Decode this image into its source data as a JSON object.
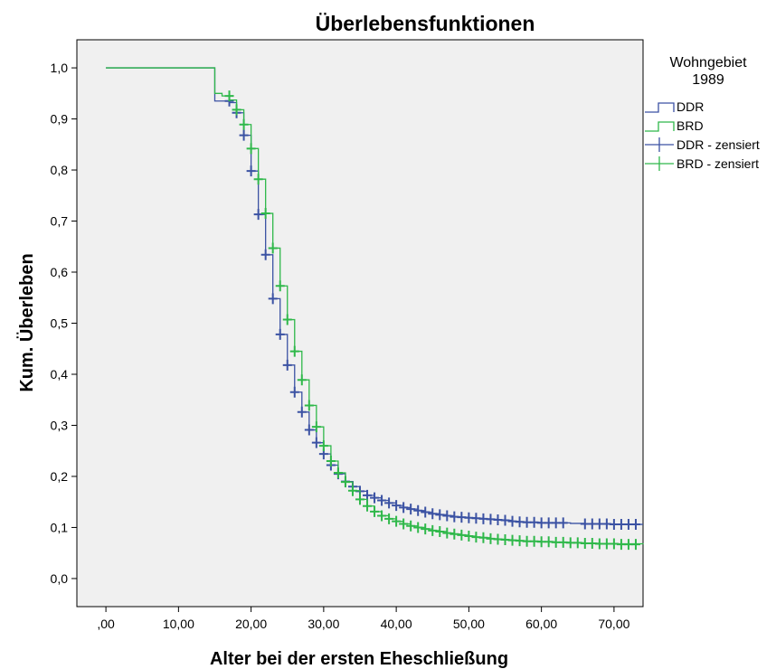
{
  "chart_data": {
    "type": "line",
    "title": "Überlebensfunktionen",
    "xlabel": "Alter bei der ersten Eheschließung",
    "ylabel": "Kum. Überleben",
    "xlim": [
      -4,
      74
    ],
    "ylim": [
      -0.055,
      1.055
    ],
    "x_ticks": [
      0,
      10,
      20,
      30,
      40,
      50,
      60,
      70
    ],
    "x_tick_labels": [
      ",00",
      "10,00",
      "20,00",
      "30,00",
      "40,00",
      "50,00",
      "60,00",
      "70,00"
    ],
    "y_ticks": [
      0,
      0.1,
      0.2,
      0.3,
      0.4,
      0.5,
      0.6,
      0.7,
      0.8,
      0.9,
      1.0
    ],
    "y_tick_labels": [
      "0,0",
      "0,1",
      "0,2",
      "0,3",
      "0,4",
      "0,5",
      "0,6",
      "0,7",
      "0,8",
      "0,9",
      "1,0"
    ],
    "grid": false,
    "plot_background": "#f0f0f0",
    "legend": {
      "title_lines": [
        "Wohngebiet",
        "1989"
      ],
      "position": "right",
      "entries": [
        {
          "label": "DDR",
          "kind": "step",
          "series": "DDR"
        },
        {
          "label": "BRD",
          "kind": "step",
          "series": "BRD"
        },
        {
          "label": "DDR - zensiert",
          "kind": "cross",
          "series": "DDR"
        },
        {
          "label": "BRD - zensiert",
          "kind": "cross",
          "series": "BRD"
        }
      ]
    },
    "series": [
      {
        "name": "DDR",
        "color": "#3b52a3",
        "steps": [
          [
            0,
            1.0
          ],
          [
            15,
            0.935
          ],
          [
            17,
            0.932
          ],
          [
            18,
            0.912
          ],
          [
            19,
            0.868
          ],
          [
            20,
            0.798
          ],
          [
            21,
            0.713
          ],
          [
            22,
            0.634
          ],
          [
            23,
            0.548
          ],
          [
            24,
            0.478
          ],
          [
            25,
            0.418
          ],
          [
            26,
            0.365
          ],
          [
            27,
            0.326
          ],
          [
            28,
            0.291
          ],
          [
            29,
            0.266
          ],
          [
            30,
            0.244
          ],
          [
            31,
            0.222
          ],
          [
            32,
            0.205
          ],
          [
            33,
            0.19
          ],
          [
            34,
            0.18
          ],
          [
            35,
            0.171
          ],
          [
            36,
            0.163
          ],
          [
            37,
            0.158
          ],
          [
            38,
            0.153
          ],
          [
            39,
            0.148
          ],
          [
            40,
            0.143
          ],
          [
            41,
            0.139
          ],
          [
            42,
            0.136
          ],
          [
            43,
            0.133
          ],
          [
            44,
            0.13
          ],
          [
            45,
            0.127
          ],
          [
            46,
            0.125
          ],
          [
            47,
            0.123
          ],
          [
            48,
            0.121
          ],
          [
            49,
            0.12
          ],
          [
            50,
            0.119
          ],
          [
            51,
            0.118
          ],
          [
            52,
            0.117
          ],
          [
            53,
            0.116
          ],
          [
            54,
            0.115
          ],
          [
            55,
            0.114
          ],
          [
            56,
            0.112
          ],
          [
            57,
            0.111
          ],
          [
            58,
            0.11
          ],
          [
            60,
            0.109
          ],
          [
            62,
            0.109
          ],
          [
            64,
            0.108
          ],
          [
            66,
            0.107
          ],
          [
            68,
            0.107
          ],
          [
            70,
            0.106
          ],
          [
            74,
            0.106
          ]
        ],
        "censored": [
          [
            17,
            0.935
          ],
          [
            18,
            0.912
          ],
          [
            19,
            0.868
          ],
          [
            20,
            0.798
          ],
          [
            21,
            0.713
          ],
          [
            22,
            0.634
          ],
          [
            23,
            0.548
          ],
          [
            24,
            0.478
          ],
          [
            25,
            0.418
          ],
          [
            26,
            0.365
          ],
          [
            27,
            0.326
          ],
          [
            28,
            0.291
          ],
          [
            29,
            0.266
          ],
          [
            30,
            0.244
          ],
          [
            31,
            0.222
          ],
          [
            32,
            0.205
          ],
          [
            33,
            0.19
          ],
          [
            34,
            0.18
          ],
          [
            35,
            0.171
          ],
          [
            36,
            0.163
          ],
          [
            37,
            0.158
          ],
          [
            38,
            0.153
          ],
          [
            39,
            0.148
          ],
          [
            40,
            0.143
          ],
          [
            41,
            0.139
          ],
          [
            42,
            0.136
          ],
          [
            43,
            0.133
          ],
          [
            44,
            0.13
          ],
          [
            45,
            0.127
          ],
          [
            46,
            0.125
          ],
          [
            47,
            0.123
          ],
          [
            48,
            0.121
          ],
          [
            49,
            0.12
          ],
          [
            50,
            0.119
          ],
          [
            51,
            0.118
          ],
          [
            52,
            0.117
          ],
          [
            53,
            0.116
          ],
          [
            54,
            0.115
          ],
          [
            55,
            0.114
          ],
          [
            56,
            0.112
          ],
          [
            57,
            0.111
          ],
          [
            58,
            0.11
          ],
          [
            59,
            0.11
          ],
          [
            60,
            0.109
          ],
          [
            61,
            0.109
          ],
          [
            62,
            0.109
          ],
          [
            63,
            0.109
          ],
          [
            66,
            0.107
          ],
          [
            67,
            0.107
          ],
          [
            68,
            0.107
          ],
          [
            69,
            0.107
          ],
          [
            70,
            0.106
          ],
          [
            71,
            0.106
          ],
          [
            72,
            0.106
          ],
          [
            73,
            0.106
          ]
        ]
      },
      {
        "name": "BRD",
        "color": "#2fb84a",
        "steps": [
          [
            0,
            1.0
          ],
          [
            15,
            0.95
          ],
          [
            16,
            0.945
          ],
          [
            17,
            0.937
          ],
          [
            18,
            0.918
          ],
          [
            19,
            0.889
          ],
          [
            20,
            0.842
          ],
          [
            21,
            0.782
          ],
          [
            22,
            0.715
          ],
          [
            23,
            0.647
          ],
          [
            24,
            0.573
          ],
          [
            25,
            0.507
          ],
          [
            26,
            0.445
          ],
          [
            27,
            0.389
          ],
          [
            28,
            0.339
          ],
          [
            29,
            0.297
          ],
          [
            30,
            0.26
          ],
          [
            31,
            0.23
          ],
          [
            32,
            0.207
          ],
          [
            33,
            0.189
          ],
          [
            34,
            0.172
          ],
          [
            35,
            0.155
          ],
          [
            36,
            0.142
          ],
          [
            37,
            0.131
          ],
          [
            38,
            0.123
          ],
          [
            39,
            0.117
          ],
          [
            40,
            0.112
          ],
          [
            41,
            0.107
          ],
          [
            42,
            0.103
          ],
          [
            43,
            0.1
          ],
          [
            44,
            0.097
          ],
          [
            45,
            0.094
          ],
          [
            46,
            0.092
          ],
          [
            47,
            0.089
          ],
          [
            48,
            0.087
          ],
          [
            49,
            0.085
          ],
          [
            50,
            0.083
          ],
          [
            51,
            0.081
          ],
          [
            52,
            0.08
          ],
          [
            53,
            0.078
          ],
          [
            54,
            0.077
          ],
          [
            55,
            0.076
          ],
          [
            56,
            0.075
          ],
          [
            57,
            0.074
          ],
          [
            58,
            0.073
          ],
          [
            60,
            0.072
          ],
          [
            62,
            0.071
          ],
          [
            64,
            0.07
          ],
          [
            66,
            0.069
          ],
          [
            68,
            0.068
          ],
          [
            70,
            0.068
          ],
          [
            74,
            0.067
          ]
        ],
        "censored": [
          [
            17,
            0.945
          ],
          [
            18,
            0.918
          ],
          [
            19,
            0.889
          ],
          [
            20,
            0.842
          ],
          [
            21,
            0.782
          ],
          [
            22,
            0.715
          ],
          [
            23,
            0.647
          ],
          [
            24,
            0.573
          ],
          [
            25,
            0.507
          ],
          [
            26,
            0.445
          ],
          [
            27,
            0.389
          ],
          [
            28,
            0.339
          ],
          [
            29,
            0.297
          ],
          [
            30,
            0.26
          ],
          [
            31,
            0.23
          ],
          [
            32,
            0.207
          ],
          [
            33,
            0.189
          ],
          [
            34,
            0.172
          ],
          [
            35,
            0.155
          ],
          [
            36,
            0.142
          ],
          [
            37,
            0.131
          ],
          [
            38,
            0.123
          ],
          [
            39,
            0.117
          ],
          [
            40,
            0.112
          ],
          [
            41,
            0.107
          ],
          [
            42,
            0.103
          ],
          [
            43,
            0.1
          ],
          [
            44,
            0.097
          ],
          [
            45,
            0.094
          ],
          [
            46,
            0.092
          ],
          [
            47,
            0.089
          ],
          [
            48,
            0.087
          ],
          [
            49,
            0.085
          ],
          [
            50,
            0.083
          ],
          [
            51,
            0.081
          ],
          [
            52,
            0.08
          ],
          [
            53,
            0.078
          ],
          [
            54,
            0.077
          ],
          [
            55,
            0.076
          ],
          [
            56,
            0.075
          ],
          [
            57,
            0.074
          ],
          [
            58,
            0.073
          ],
          [
            59,
            0.073
          ],
          [
            60,
            0.072
          ],
          [
            61,
            0.072
          ],
          [
            62,
            0.071
          ],
          [
            63,
            0.071
          ],
          [
            64,
            0.07
          ],
          [
            65,
            0.07
          ],
          [
            66,
            0.069
          ],
          [
            67,
            0.069
          ],
          [
            68,
            0.068
          ],
          [
            69,
            0.068
          ],
          [
            70,
            0.068
          ],
          [
            71,
            0.067
          ],
          [
            72,
            0.067
          ],
          [
            73,
            0.067
          ]
        ]
      }
    ]
  }
}
